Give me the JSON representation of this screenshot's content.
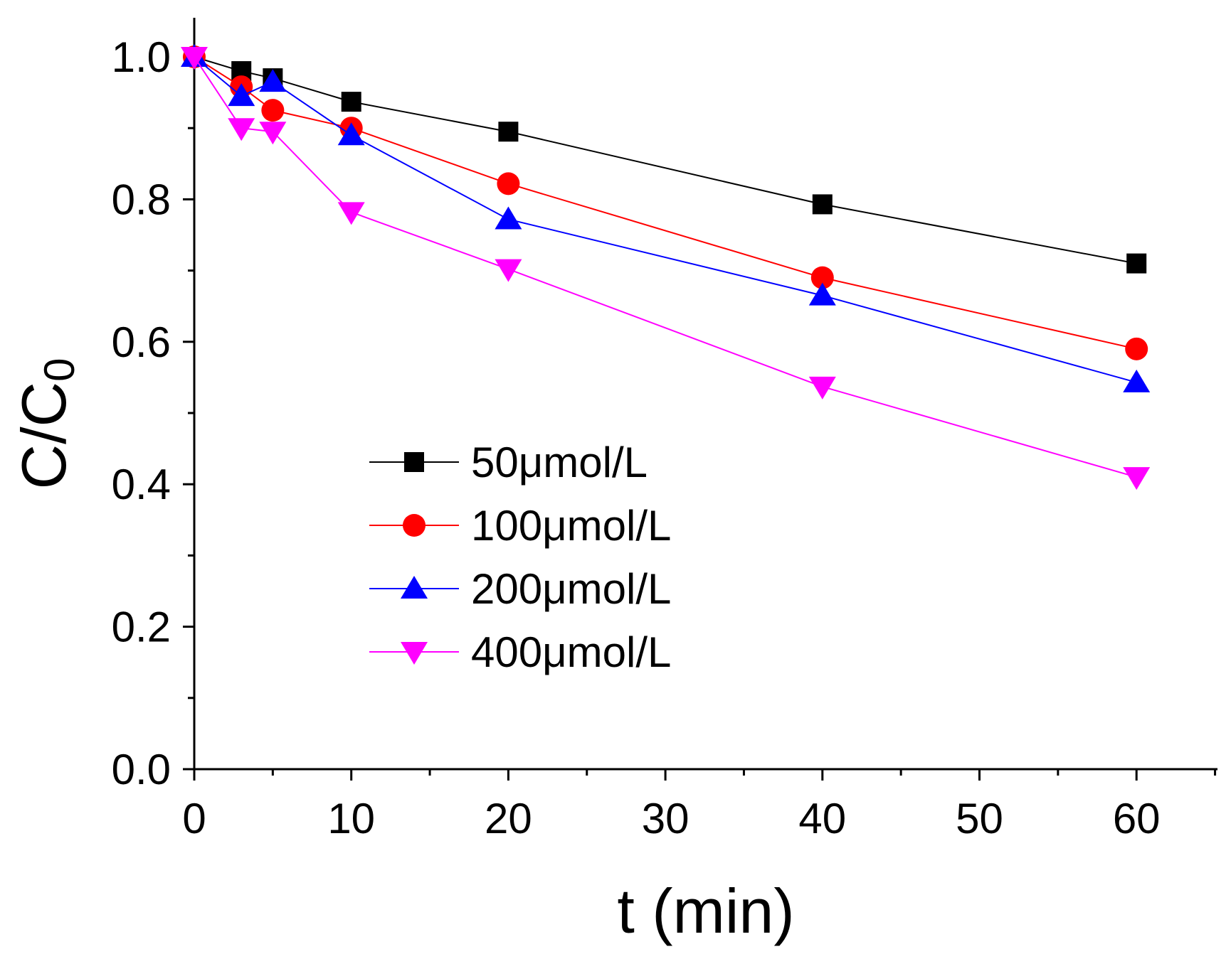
{
  "chart_data": {
    "type": "line",
    "xlabel": "t (min)",
    "ylabel_main": "C/C",
    "ylabel_sub": "0",
    "xlim": [
      0,
      65
    ],
    "ylim": [
      0,
      1.05
    ],
    "x_ticks": [
      "0",
      "10",
      "20",
      "30",
      "40",
      "50",
      "60"
    ],
    "y_ticks": [
      "0.0",
      "0.2",
      "0.4",
      "0.6",
      "0.8",
      "1.0"
    ],
    "grid": false,
    "legend_position": "center-left",
    "series": [
      {
        "name": "50μmol/L",
        "marker": "square",
        "color": "#000000",
        "x": [
          0,
          3,
          5,
          10,
          20,
          40,
          60
        ],
        "y": [
          1.0,
          0.98,
          0.97,
          0.937,
          0.895,
          0.793,
          0.71
        ]
      },
      {
        "name": "100μmol/L",
        "marker": "circle",
        "color": "#ff0000",
        "x": [
          0,
          3,
          5,
          10,
          20,
          40,
          60
        ],
        "y": [
          1.0,
          0.958,
          0.925,
          0.9,
          0.822,
          0.69,
          0.59
        ]
      },
      {
        "name": "200μmol/L",
        "marker": "triangle-up",
        "color": "#0000ff",
        "x": [
          0,
          3,
          5,
          10,
          20,
          40,
          60
        ],
        "y": [
          1.0,
          0.945,
          0.965,
          0.89,
          0.772,
          0.665,
          0.543
        ]
      },
      {
        "name": "400μmol/L",
        "marker": "triangle-down",
        "color": "#ff00ff",
        "x": [
          0,
          3,
          5,
          10,
          20,
          40,
          60
        ],
        "y": [
          1.0,
          0.9,
          0.895,
          0.782,
          0.702,
          0.537,
          0.41
        ]
      }
    ]
  }
}
